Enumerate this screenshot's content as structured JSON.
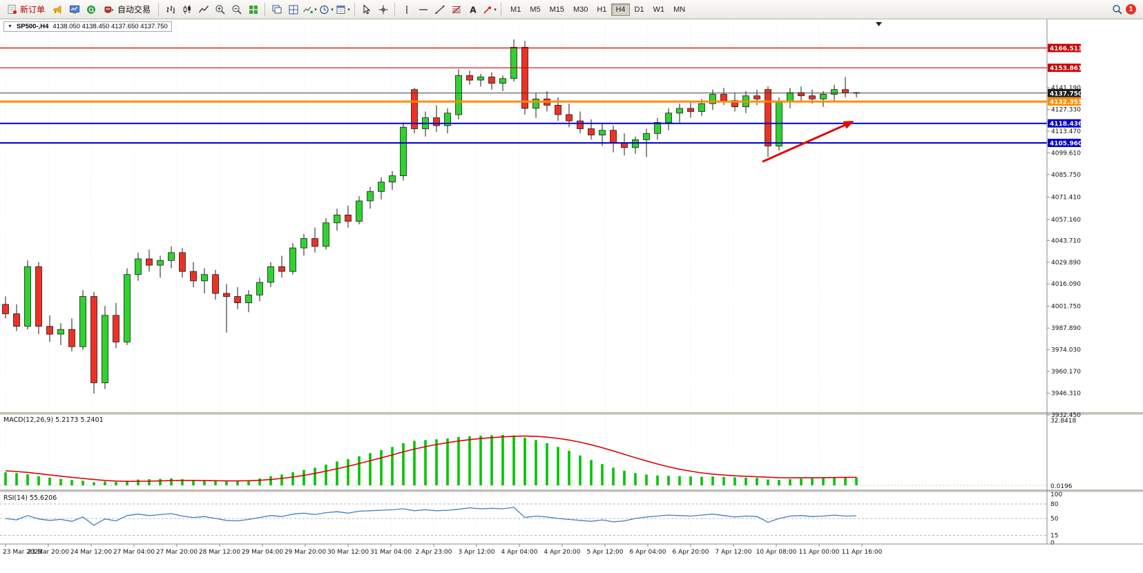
{
  "toolbar": {
    "new_order_label": "新订单",
    "auto_trading_label": "自动交易",
    "timeframes": [
      "M1",
      "M5",
      "M15",
      "M30",
      "H1",
      "H4",
      "D1",
      "W1",
      "MN"
    ],
    "active_timeframe": "H4",
    "notification_count": "1",
    "icons": [
      "new-order-icon",
      "alerts-horn-icon",
      "market-watch-icon",
      "community-icon",
      "auto-trading-robot-icon",
      "bar-chart-icon",
      "candlestick-icon",
      "line-chart-icon",
      "zoom-in-icon",
      "zoom-out-icon",
      "tile-windows-icon",
      "cascade-windows-icon",
      "arrange-windows-icon",
      "indicators-icon",
      "periods-clock-icon",
      "templates-icon",
      "cursor-icon",
      "crosshair-icon",
      "vertical-line-icon",
      "horizontal-line-icon",
      "trendline-icon",
      "fibonacci-icon",
      "text-label-icon",
      "arrow-object-icon",
      "search-icon"
    ]
  },
  "chart": {
    "title_symbol": "SP500-,H4",
    "title_ohlc": "4138.050 4138.450 4137.650 4137.750"
  },
  "chart_data": {
    "type": "candlestick",
    "symbol": "SP500-",
    "timeframe": "H4",
    "colors": {
      "bull": "#2fd32f",
      "bear": "#ef3124",
      "wick": "#1a1a1a",
      "grid": "#e7e5e2",
      "macd_hist": "#00c400",
      "macd_signal": "#e00000",
      "rsi_line": "#3f7fbf",
      "arrow": "#e60000"
    },
    "candles": [
      [
        4003,
        4008,
        3994,
        3997
      ],
      [
        3997,
        4003,
        3986,
        3989
      ],
      [
        3989,
        4031,
        3987,
        4027
      ],
      [
        4027,
        4030,
        3984,
        3989
      ],
      [
        3989,
        3996,
        3979,
        3984
      ],
      [
        3984,
        3991,
        3977,
        3987
      ],
      [
        3987,
        3994,
        3973,
        3976
      ],
      [
        3976,
        4012,
        3974,
        4008
      ],
      [
        4008,
        4011,
        3946,
        3953
      ],
      [
        3953,
        4002,
        3949,
        3996
      ],
      [
        3996,
        4004,
        3975,
        3979
      ],
      [
        3979,
        4026,
        3977,
        4022
      ],
      [
        4022,
        4036,
        4018,
        4032
      ],
      [
        4032,
        4038,
        4024,
        4028
      ],
      [
        4028,
        4034,
        4020,
        4031
      ],
      [
        4031,
        4040,
        4026,
        4036
      ],
      [
        4036,
        4039,
        4020,
        4024
      ],
      [
        4024,
        4030,
        4014,
        4018
      ],
      [
        4018,
        4026,
        4010,
        4022
      ],
      [
        4022,
        4025,
        4006,
        4010
      ],
      [
        4010,
        4016,
        3985,
        4008
      ],
      [
        4008,
        4014,
        4000,
        4004
      ],
      [
        4004,
        4012,
        3998,
        4009
      ],
      [
        4009,
        4020,
        4005,
        4017
      ],
      [
        4017,
        4030,
        4014,
        4027
      ],
      [
        4027,
        4034,
        4020,
        4024
      ],
      [
        4024,
        4042,
        4022,
        4039
      ],
      [
        4039,
        4048,
        4034,
        4045
      ],
      [
        4045,
        4052,
        4036,
        4040
      ],
      [
        4040,
        4058,
        4038,
        4055
      ],
      [
        4055,
        4064,
        4050,
        4060
      ],
      [
        4060,
        4066,
        4052,
        4056
      ],
      [
        4056,
        4072,
        4054,
        4069
      ],
      [
        4069,
        4078,
        4064,
        4075
      ],
      [
        4075,
        4084,
        4070,
        4081
      ],
      [
        4081,
        4088,
        4076,
        4085
      ],
      [
        4085,
        4119,
        4082,
        4116
      ],
      [
        4140,
        4141,
        4112,
        4115
      ],
      [
        4115,
        4126,
        4110,
        4122
      ],
      [
        4122,
        4130,
        4113,
        4117
      ],
      [
        4117,
        4128,
        4112,
        4125
      ],
      [
        4124,
        4153,
        4121,
        4149
      ],
      [
        4149,
        4152,
        4143,
        4146
      ],
      [
        4146,
        4150,
        4142,
        4148
      ],
      [
        4148,
        4151,
        4140,
        4144
      ],
      [
        4144,
        4149,
        4139,
        4147
      ],
      [
        4147,
        4172,
        4145,
        4167
      ],
      [
        4167,
        4171,
        4124,
        4128
      ],
      [
        4128,
        4138,
        4122,
        4134
      ],
      [
        4134,
        4139,
        4126,
        4130
      ],
      [
        4130,
        4135,
        4120,
        4124
      ],
      [
        4124,
        4131,
        4116,
        4120
      ],
      [
        4120,
        4126,
        4112,
        4115
      ],
      [
        4115,
        4121,
        4108,
        4111
      ],
      [
        4111,
        4118,
        4104,
        4114
      ],
      [
        4114,
        4117,
        4100,
        4106
      ],
      [
        4106,
        4112,
        4098,
        4103
      ],
      [
        4103,
        4110,
        4099,
        4108
      ],
      [
        4108,
        4115,
        4097,
        4112
      ],
      [
        4112,
        4122,
        4108,
        4119
      ],
      [
        4119,
        4128,
        4114,
        4125
      ],
      [
        4125,
        4131,
        4119,
        4128
      ],
      [
        4128,
        4132,
        4122,
        4126
      ],
      [
        4126,
        4134,
        4123,
        4131
      ],
      [
        4131,
        4140,
        4127,
        4137
      ],
      [
        4137,
        4141,
        4130,
        4133
      ],
      [
        4133,
        4138,
        4126,
        4129
      ],
      [
        4129,
        4139,
        4125,
        4136
      ],
      [
        4136,
        4140,
        4130,
        4134
      ],
      [
        4140,
        4142,
        4097,
        4104
      ],
      [
        4104,
        4135,
        4101,
        4132
      ],
      [
        4132,
        4141,
        4128,
        4138
      ],
      [
        4138,
        4142,
        4133,
        4136
      ],
      [
        4136,
        4140,
        4131,
        4134
      ],
      [
        4134,
        4139,
        4129,
        4137
      ],
      [
        4137,
        4143,
        4133,
        4140
      ],
      [
        4140,
        4148,
        4135,
        4138
      ],
      [
        4138.05,
        4138.45,
        4135,
        4137.75
      ]
    ],
    "price_axis": [
      "4141.190",
      "4127.330",
      "4113.470",
      "4099.610",
      "4085.750",
      "4071.410",
      "4057.160",
      "4043.710",
      "4029.890",
      "4016.090",
      "4001.750",
      "3987.890",
      "3974.030",
      "3960.170",
      "3946.310",
      "3932.450"
    ],
    "hlines": [
      {
        "price": 4166.513,
        "label": "4166.513",
        "color": "#cc0000",
        "width": 1.2
      },
      {
        "price": 4153.861,
        "label": "4153.861",
        "color": "#cc0000",
        "width": 1.2
      },
      {
        "price": 4132.353,
        "label": "4132.353",
        "color": "#ff8c00",
        "width": 3
      },
      {
        "price": 4118.436,
        "label": "4118.436",
        "color": "#0000cc",
        "width": 2
      },
      {
        "price": 4105.96,
        "label": "4105.960",
        "color": "#0000cc",
        "width": 2
      }
    ],
    "current_price": {
      "price": 4137.75,
      "label": "4137.750",
      "color": "#3c3c3c"
    },
    "arrow": {
      "from": {
        "index": 68.5,
        "price": 4094
      },
      "to": {
        "index": 76.8,
        "price": 4120
      },
      "color": "#e60000"
    },
    "time_labels": [
      "23 Mar 2023",
      "23 Mar 20:00",
      "24 Mar 12:00",
      "27 Mar 04:00",
      "27 Mar 20:00",
      "28 Mar 12:00",
      "29 Mar 04:00",
      "29 Mar 20:00",
      "30 Mar 12:00",
      "31 Mar 04:00",
      "2 Apr 23:00",
      "3 Apr 12:00",
      "4 Apr 04:00",
      "4 Apr 20:00",
      "5 Apr 12:00",
      "6 Apr 04:00",
      "6 Apr 20:00",
      "7 Apr 12:00",
      "10 Apr 08:00",
      "11 Apr 00:00",
      "11 Apr 16:00"
    ],
    "macd": {
      "label": "MACD(12,26,9) 5.2173 5.2401",
      "axis_max": "32.8418",
      "axis_min": "0.0196",
      "hist": [
        8.5,
        8.0,
        7.2,
        6.0,
        5.0,
        4.2,
        3.5,
        3.0,
        2.0,
        2.5,
        2.2,
        3.0,
        3.8,
        4.0,
        4.2,
        4.5,
        4.0,
        3.5,
        3.2,
        3.0,
        2.5,
        2.8,
        3.2,
        4.5,
        6.0,
        7.0,
        8.5,
        10.0,
        11.5,
        13.5,
        15.5,
        17.0,
        19.0,
        21.0,
        23.0,
        25.0,
        27.5,
        29.0,
        29.5,
        30.0,
        30.5,
        31.5,
        32.0,
        32.3,
        32.6,
        32.84,
        32.5,
        31.0,
        29.5,
        27.5,
        25.0,
        22.5,
        19.5,
        16.5,
        13.8,
        11.5,
        9.5,
        8.0,
        7.0,
        6.5,
        6.2,
        6.0,
        5.8,
        5.6,
        5.8,
        5.5,
        5.2,
        5.0,
        4.8,
        3.8,
        3.5,
        4.0,
        4.4,
        4.6,
        4.8,
        5.0,
        5.1,
        5.22
      ],
      "signal": [
        9.5,
        9.0,
        8.4,
        7.6,
        6.8,
        6.0,
        5.2,
        4.5,
        3.8,
        3.2,
        2.8,
        2.6,
        2.6,
        2.7,
        2.9,
        3.1,
        3.2,
        3.2,
        3.1,
        3.0,
        2.9,
        2.9,
        3.0,
        3.3,
        3.8,
        4.5,
        5.4,
        6.5,
        7.8,
        9.2,
        10.8,
        12.4,
        14.2,
        16.0,
        17.9,
        19.8,
        21.8,
        23.6,
        25.2,
        26.6,
        27.8,
        28.9,
        29.8,
        30.5,
        31.1,
        31.6,
        32.0,
        32.1,
        31.9,
        31.4,
        30.6,
        29.5,
        28.1,
        26.4,
        24.5,
        22.4,
        20.2,
        18.0,
        15.9,
        13.9,
        12.1,
        10.5,
        9.2,
        8.1,
        7.3,
        6.7,
        6.2,
        5.9,
        5.6,
        5.3,
        5.0,
        4.9,
        4.9,
        4.9,
        5.0,
        5.1,
        5.2,
        5.24
      ]
    },
    "rsi": {
      "label": "RSI(14) 55.6206",
      "axis_labels": [
        "100",
        "80",
        "50",
        "15",
        "0"
      ],
      "levels": [
        80,
        50,
        15
      ],
      "series": [
        50,
        47,
        56,
        49,
        46,
        48,
        44,
        53,
        36,
        49,
        45,
        56,
        59,
        56,
        58,
        60,
        55,
        52,
        54,
        50,
        46,
        45,
        48,
        52,
        56,
        54,
        59,
        61,
        58,
        62,
        64,
        61,
        65,
        66,
        67,
        68,
        70,
        66,
        68,
        66,
        67,
        69,
        72,
        70,
        71,
        70,
        73,
        52,
        55,
        53,
        50,
        48,
        46,
        44,
        47,
        43,
        45,
        50,
        53,
        55,
        57,
        56,
        55,
        57,
        59,
        56,
        53,
        55,
        54,
        42,
        50,
        55,
        56,
        54,
        55,
        57,
        55,
        55.6
      ]
    }
  }
}
